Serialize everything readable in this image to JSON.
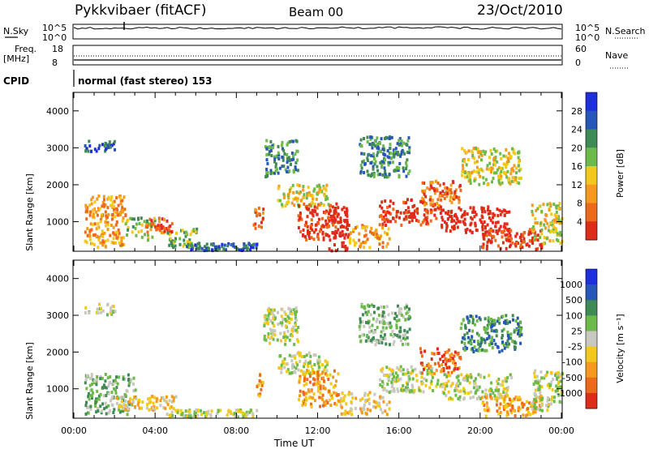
{
  "header": {
    "radar": "Pykkvibaer (fitACF)",
    "beam": "Beam 00",
    "date": "23/Oct/2010"
  },
  "noise_panel": {
    "left_label": "N.Sky",
    "right_label": "N.Search",
    "ticks": [
      "10^5",
      "10^0"
    ]
  },
  "freq_panel": {
    "left_label_1": "Freq.",
    "left_label_2": "[MHz]",
    "left_ticks": [
      "18",
      "8"
    ],
    "right_label": "Nave",
    "right_ticks": [
      "60",
      "0"
    ]
  },
  "cpid": {
    "label": "CPID",
    "program": "normal (fast stereo) 153"
  },
  "chart_data": [
    {
      "type": "heatmap",
      "title": "",
      "xlabel": "",
      "ylabel": "Slant Range [km]",
      "yticks": [
        "1000",
        "2000",
        "3000",
        "4000"
      ],
      "ylim": [
        200,
        4500
      ],
      "xlim": [
        "00:00",
        "24:00"
      ],
      "colorbar": {
        "label": "Power [dB]",
        "ticks": [
          "4",
          "8",
          "12",
          "16",
          "20",
          "24",
          "28"
        ],
        "colors": [
          "#1f2fe0",
          "#2856b8",
          "#3f8a55",
          "#6cbb4a",
          "#f2c81a",
          "#f59a1a",
          "#ee6a1a",
          "#e02a1a"
        ]
      },
      "blobs": [
        {
          "x": [
            0.5,
            2.5
          ],
          "y": [
            300,
            1700
          ],
          "level": 5
        },
        {
          "x": [
            0.5,
            2.0
          ],
          "y": [
            2900,
            3200
          ],
          "level": 1
        },
        {
          "x": [
            2.5,
            4.0
          ],
          "y": [
            500,
            1100
          ],
          "level": 3
        },
        {
          "x": [
            3.5,
            4.8
          ],
          "y": [
            700,
            1100
          ],
          "level": 6
        },
        {
          "x": [
            4.5,
            6.0
          ],
          "y": [
            300,
            800
          ],
          "level": 3
        },
        {
          "x": [
            5.5,
            9.0
          ],
          "y": [
            220,
            420
          ],
          "level": 1
        },
        {
          "x": [
            8.8,
            9.3
          ],
          "y": [
            800,
            1400
          ],
          "level": 6
        },
        {
          "x": [
            9.3,
            11.0
          ],
          "y": [
            2200,
            3200
          ],
          "level": 2
        },
        {
          "x": [
            10.0,
            12.5
          ],
          "y": [
            1400,
            2000
          ],
          "level": 4
        },
        {
          "x": [
            11.0,
            13.0
          ],
          "y": [
            500,
            1500
          ],
          "level": 7
        },
        {
          "x": [
            12.5,
            13.5
          ],
          "y": [
            200,
            1400
          ],
          "level": 8
        },
        {
          "x": [
            13.5,
            15.5
          ],
          "y": [
            300,
            900
          ],
          "level": 5
        },
        {
          "x": [
            14.0,
            16.5
          ],
          "y": [
            2200,
            3300
          ],
          "level": 2
        },
        {
          "x": [
            15.0,
            18.0
          ],
          "y": [
            900,
            1600
          ],
          "level": 7
        },
        {
          "x": [
            17.0,
            19.0
          ],
          "y": [
            1400,
            2100
          ],
          "level": 6
        },
        {
          "x": [
            18.0,
            21.5
          ],
          "y": [
            700,
            1400
          ],
          "level": 8
        },
        {
          "x": [
            19.0,
            22.0
          ],
          "y": [
            2000,
            3000
          ],
          "level": 4
        },
        {
          "x": [
            20.0,
            23.0
          ],
          "y": [
            250,
            800
          ],
          "level": 7
        },
        {
          "x": [
            22.5,
            24.0
          ],
          "y": [
            400,
            1500
          ],
          "level": 4
        }
      ]
    },
    {
      "type": "heatmap",
      "title": "",
      "xlabel": "Time UT",
      "ylabel": "Slant Range [km]",
      "yticks": [
        "1000",
        "2000",
        "3000",
        "4000"
      ],
      "ylim": [
        200,
        4500
      ],
      "xticks": [
        "00:00",
        "04:00",
        "08:00",
        "12:00",
        "16:00",
        "20:00",
        "00:00"
      ],
      "colorbar": {
        "label": "Velocity [m s⁻¹]",
        "ticks": [
          "1000",
          "500",
          "100",
          "25",
          "-25",
          "-100",
          "-500",
          "-1000"
        ],
        "colors": [
          "#1f2fe0",
          "#2856b8",
          "#3f8a55",
          "#6cbb4a",
          "#c8c8c0",
          "#f2c81a",
          "#f59a1a",
          "#ee6a1a",
          "#e02a1a"
        ]
      },
      "blobs": [
        {
          "x": [
            0.5,
            2.0
          ],
          "y": [
            3000,
            3300
          ],
          "level": 4
        },
        {
          "x": [
            0.5,
            3.0
          ],
          "y": [
            300,
            1400
          ],
          "level": 3
        },
        {
          "x": [
            2.0,
            5.0
          ],
          "y": [
            400,
            800
          ],
          "level": 5
        },
        {
          "x": [
            4.5,
            9.0
          ],
          "y": [
            220,
            420
          ],
          "level": 4
        },
        {
          "x": [
            8.8,
            9.3
          ],
          "y": [
            800,
            1400
          ],
          "level": 6
        },
        {
          "x": [
            9.3,
            11.0
          ],
          "y": [
            2200,
            3200
          ],
          "level": 4
        },
        {
          "x": [
            10.0,
            12.5
          ],
          "y": [
            1400,
            2000
          ],
          "level": 4
        },
        {
          "x": [
            11.0,
            13.0
          ],
          "y": [
            500,
            1500
          ],
          "level": 6
        },
        {
          "x": [
            13.0,
            15.5
          ],
          "y": [
            300,
            900
          ],
          "level": 5
        },
        {
          "x": [
            14.0,
            16.5
          ],
          "y": [
            2200,
            3300
          ],
          "level": 3
        },
        {
          "x": [
            15.0,
            18.0
          ],
          "y": [
            900,
            1600
          ],
          "level": 4
        },
        {
          "x": [
            17.0,
            19.0
          ],
          "y": [
            1400,
            2100
          ],
          "level": 7
        },
        {
          "x": [
            18.0,
            21.5
          ],
          "y": [
            700,
            1400
          ],
          "level": 4
        },
        {
          "x": [
            19.0,
            22.0
          ],
          "y": [
            2000,
            3000
          ],
          "level": 2
        },
        {
          "x": [
            20.0,
            23.0
          ],
          "y": [
            250,
            800
          ],
          "level": 6
        },
        {
          "x": [
            22.5,
            24.0
          ],
          "y": [
            400,
            1500
          ],
          "level": 4
        }
      ]
    }
  ]
}
